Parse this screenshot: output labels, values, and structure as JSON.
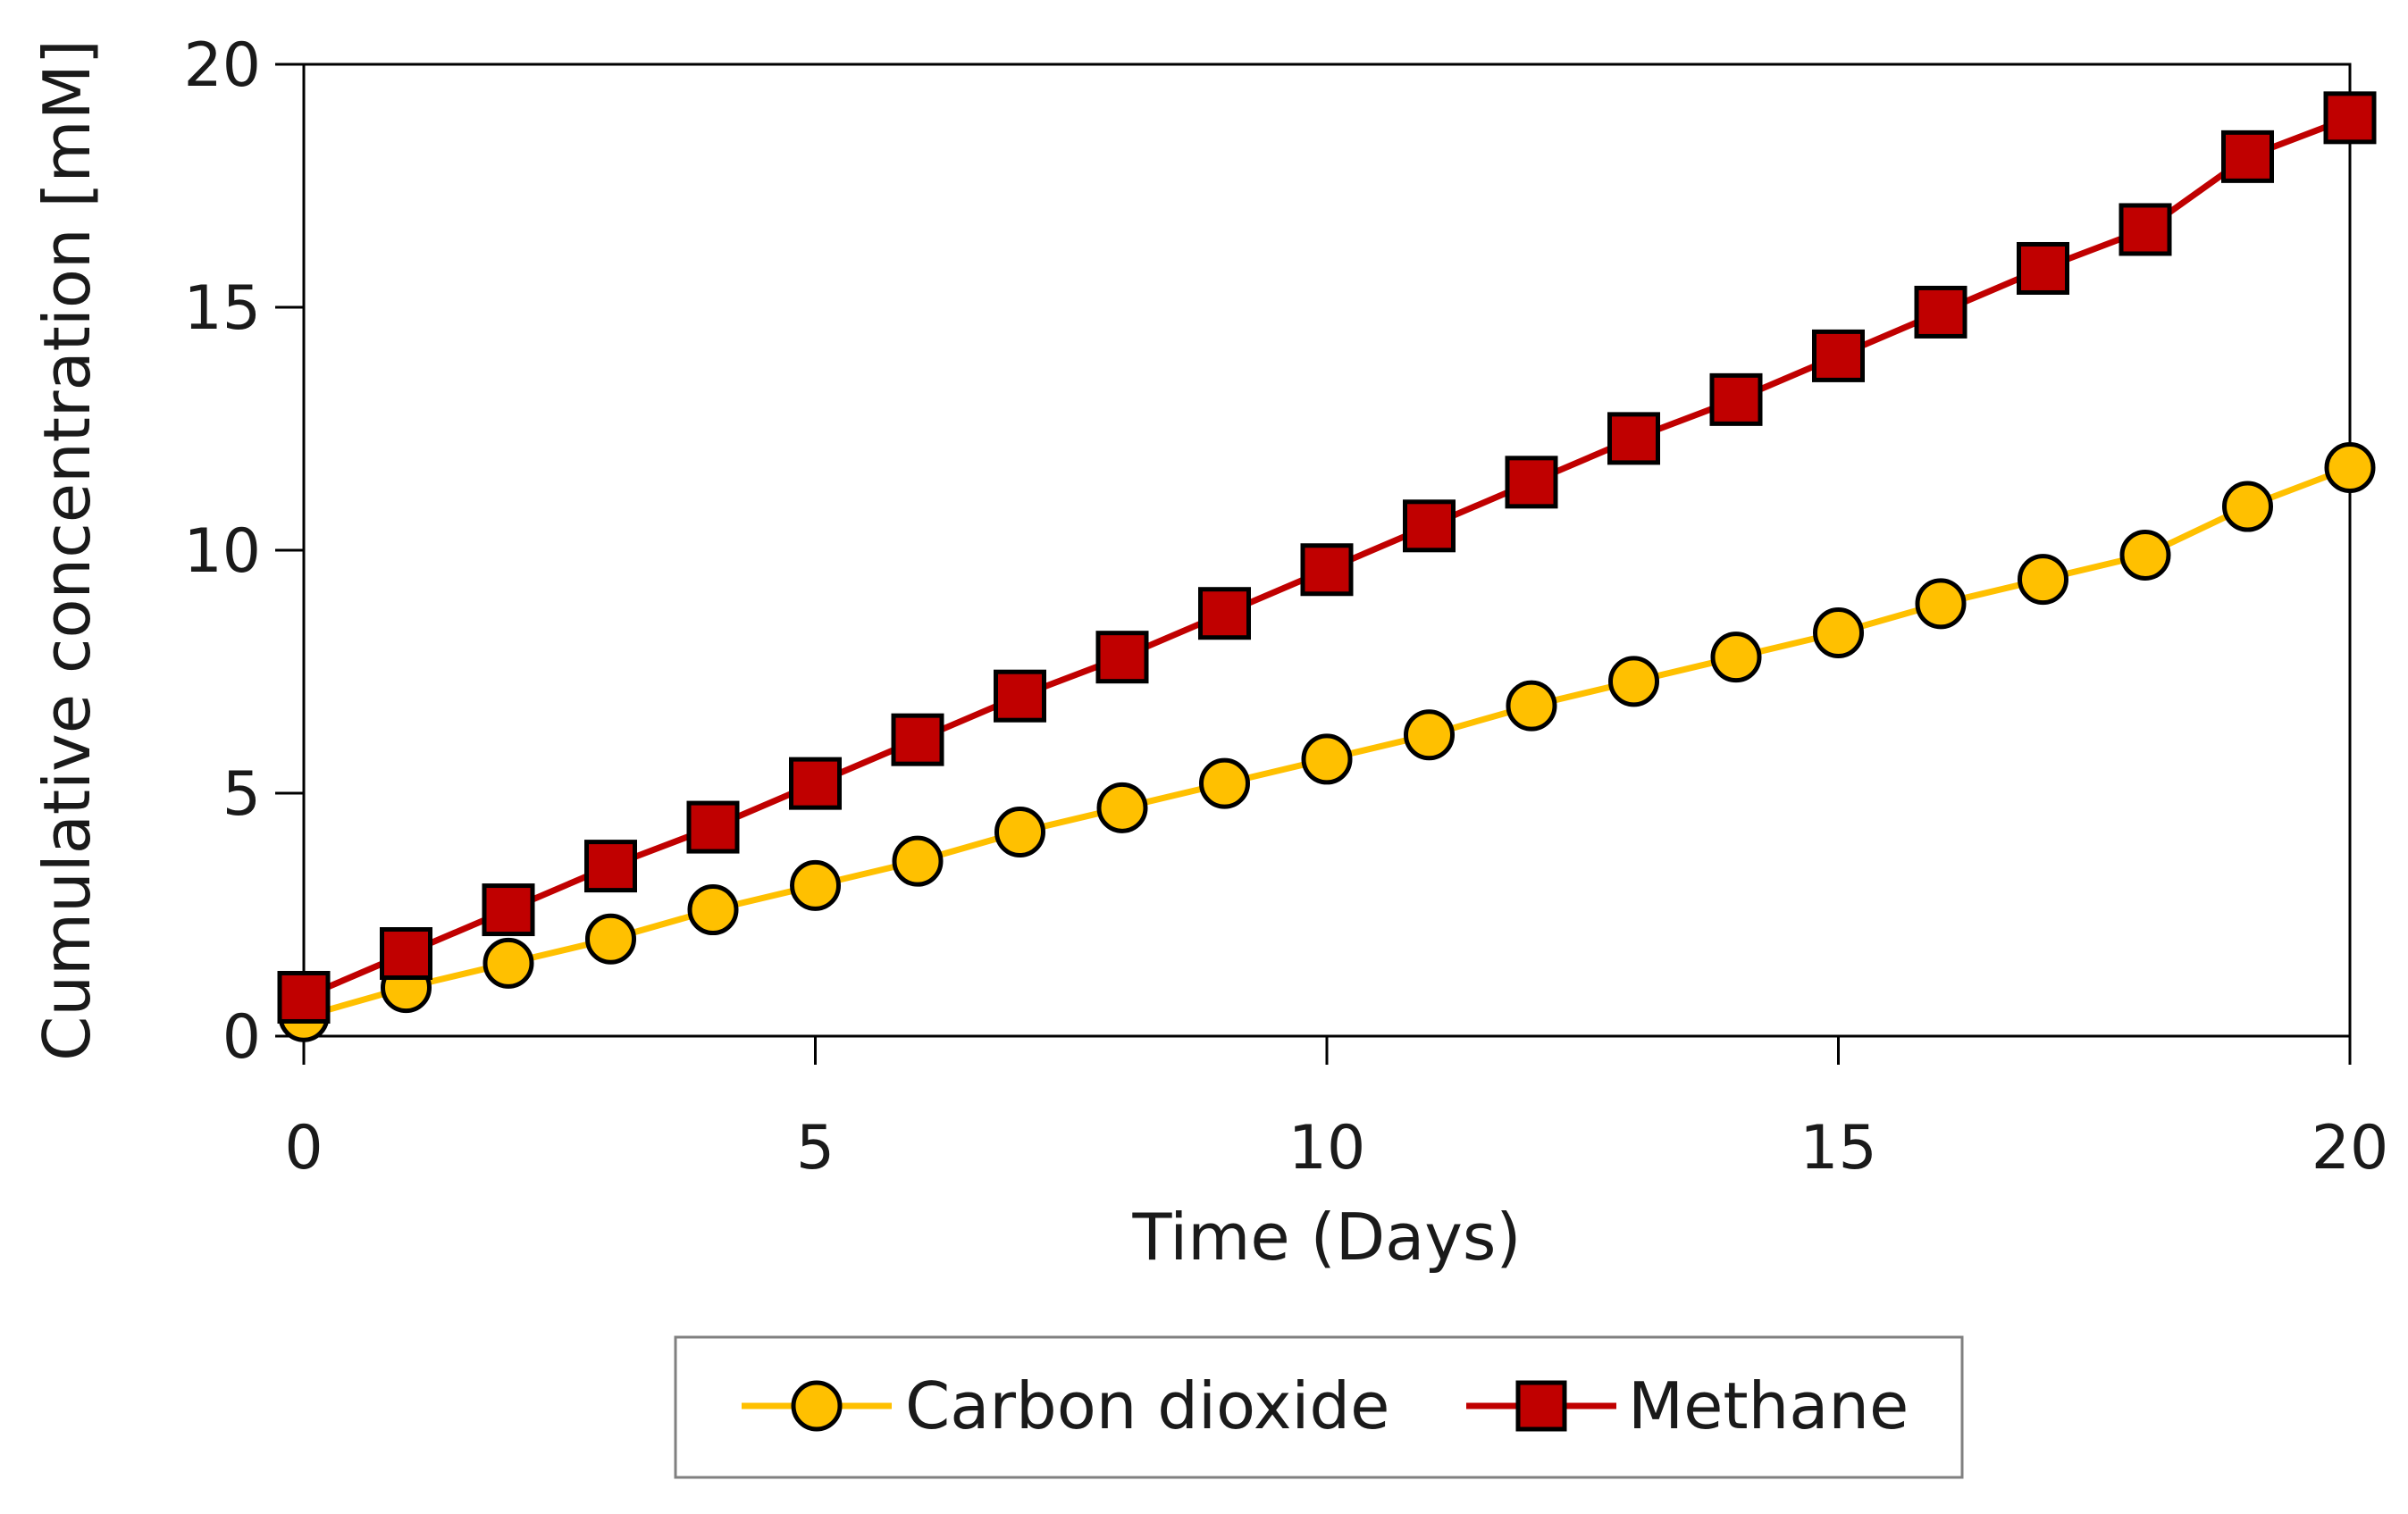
{
  "chart_data": {
    "type": "line",
    "title": "",
    "xlabel": "Time (Days)",
    "ylabel": "Cumulative concentration [mM]",
    "xlim": [
      0,
      20
    ],
    "ylim": [
      0,
      20
    ],
    "xticks": [
      0,
      5,
      10,
      15,
      20
    ],
    "yticks": [
      0,
      5,
      10,
      15,
      20
    ],
    "grid": false,
    "legend_position": "bottom",
    "x": [
      0,
      1,
      2,
      3,
      4,
      5,
      6,
      7,
      8,
      9,
      10,
      11,
      12,
      13,
      14,
      15,
      16,
      17,
      18,
      19,
      20
    ],
    "series": [
      {
        "name": "Carbon dioxide",
        "marker": "circle",
        "line_color": "#ffc000",
        "marker_fill": "#ffc000",
        "values": [
          0.4,
          1.0,
          1.5,
          2.0,
          2.6,
          3.1,
          3.6,
          4.2,
          4.7,
          5.2,
          5.7,
          6.2,
          6.8,
          7.3,
          7.8,
          8.3,
          8.9,
          9.4,
          9.9,
          10.9,
          11.7
        ]
      },
      {
        "name": "Methane",
        "marker": "square",
        "line_color": "#c00000",
        "marker_fill": "#c00000",
        "values": [
          0.8,
          1.7,
          2.6,
          3.5,
          4.3,
          5.2,
          6.1,
          7.0,
          7.8,
          8.7,
          9.6,
          10.5,
          11.4,
          12.3,
          13.1,
          14.0,
          14.9,
          15.8,
          16.6,
          18.1,
          18.9
        ]
      }
    ]
  },
  "colors": {
    "axis": "#000000",
    "marker_outline": "#000000",
    "legend_border": "#808080"
  }
}
